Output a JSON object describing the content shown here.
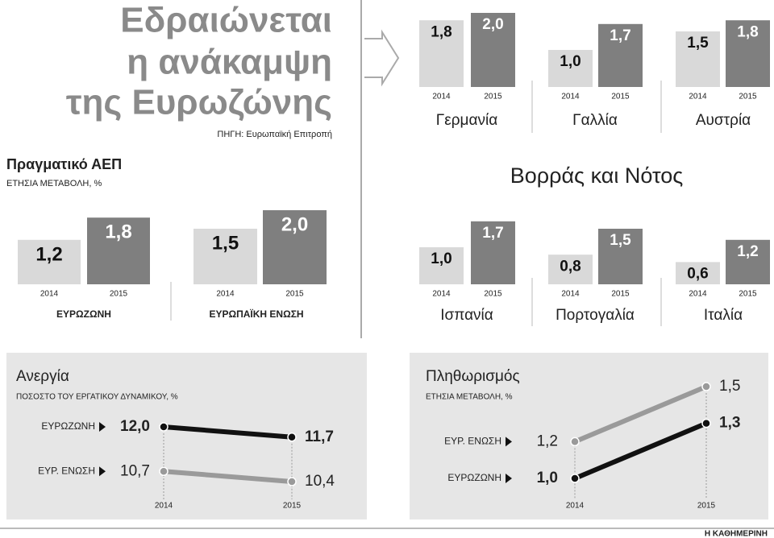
{
  "header": {
    "title_lines": [
      "Εδραιώνεται",
      "η ανάκαμψη",
      "της Ευρωζώνης"
    ],
    "source": "ΠΗΓΗ: Ευρωπαϊκή Επιτροπή"
  },
  "gdp_section": {
    "title": "Πραγματικό ΑΕΠ",
    "subtitle": "ΕΤΗΣΙΑ ΜΕΤΑΒΟΛΗ, %"
  },
  "north_south_section": {
    "title": "Βορράς και Νότος"
  },
  "footer": "Η ΚΑΘΗΜΕΡΙΝΗ",
  "chart_data": [
    {
      "type": "bar",
      "title": "ΕΥΡΩΖΩΝΗ",
      "categories": [
        "2014",
        "2015"
      ],
      "values": [
        1.2,
        1.8
      ],
      "value_labels": [
        "1,2",
        "1,8"
      ],
      "colors": [
        "#d9d9d9",
        "#7f7f7f"
      ]
    },
    {
      "type": "bar",
      "title": "ΕΥΡΩΠΑΪΚΗ ΕΝΩΣΗ",
      "categories": [
        "2014",
        "2015"
      ],
      "values": [
        1.5,
        2.0
      ],
      "value_labels": [
        "1,5",
        "2,0"
      ],
      "colors": [
        "#d9d9d9",
        "#7f7f7f"
      ]
    },
    {
      "type": "bar",
      "title": "Γερμανία",
      "categories": [
        "2014",
        "2015"
      ],
      "values": [
        1.8,
        2.0
      ],
      "value_labels": [
        "1,8",
        "2,0"
      ],
      "colors": [
        "#d9d9d9",
        "#7f7f7f"
      ]
    },
    {
      "type": "bar",
      "title": "Γαλλία",
      "categories": [
        "2014",
        "2015"
      ],
      "values": [
        1.0,
        1.7
      ],
      "value_labels": [
        "1,0",
        "1,7"
      ],
      "colors": [
        "#d9d9d9",
        "#7f7f7f"
      ]
    },
    {
      "type": "bar",
      "title": "Αυστρία",
      "categories": [
        "2014",
        "2015"
      ],
      "values": [
        1.5,
        1.8
      ],
      "value_labels": [
        "1,5",
        "1,8"
      ],
      "colors": [
        "#d9d9d9",
        "#7f7f7f"
      ]
    },
    {
      "type": "bar",
      "title": "Ισπανία",
      "categories": [
        "2014",
        "2015"
      ],
      "values": [
        1.0,
        1.7
      ],
      "value_labels": [
        "1,0",
        "1,7"
      ],
      "colors": [
        "#d9d9d9",
        "#7f7f7f"
      ]
    },
    {
      "type": "bar",
      "title": "Πορτογαλία",
      "categories": [
        "2014",
        "2015"
      ],
      "values": [
        0.8,
        1.5
      ],
      "value_labels": [
        "0,8",
        "1,5"
      ],
      "colors": [
        "#d9d9d9",
        "#7f7f7f"
      ]
    },
    {
      "type": "bar",
      "title": "Ιταλία",
      "categories": [
        "2014",
        "2015"
      ],
      "values": [
        0.6,
        1.2
      ],
      "value_labels": [
        "0,6",
        "1,2"
      ],
      "colors": [
        "#d9d9d9",
        "#7f7f7f"
      ]
    },
    {
      "type": "line",
      "title": "Ανεργία",
      "subtitle": "ΠΟΣΟΣΤΟ ΤΟΥ ΕΡΓΑΤΙΚΟΥ ΔΥΝΑΜΙΚΟΥ, %",
      "categories": [
        "2014",
        "2015"
      ],
      "series": [
        {
          "name": "ΕΥΡΩΖΩΝΗ",
          "color": "#111111",
          "values": [
            12.0,
            11.7
          ],
          "value_labels": [
            "12,0",
            "11,7"
          ]
        },
        {
          "name": "ΕΥΡ. ΕΝΩΣΗ",
          "color": "#9a9a9a",
          "values": [
            10.7,
            10.4
          ],
          "value_labels": [
            "10,7",
            "10,4"
          ]
        }
      ]
    },
    {
      "type": "line",
      "title": "Πληθωρισμός",
      "subtitle": "ΕΤΗΣΙΑ ΜΕΤΑΒΟΛΗ, %",
      "categories": [
        "2014",
        "2015"
      ],
      "series": [
        {
          "name": "ΕΥΡ. ΕΝΩΣΗ",
          "color": "#9a9a9a",
          "values": [
            1.2,
            1.5
          ],
          "value_labels": [
            "1,2",
            "1,5"
          ]
        },
        {
          "name": "ΕΥΡΩΖΩΝΗ",
          "color": "#111111",
          "values": [
            1.0,
            1.3
          ],
          "value_labels": [
            "1,0",
            "1,3"
          ]
        }
      ]
    }
  ]
}
